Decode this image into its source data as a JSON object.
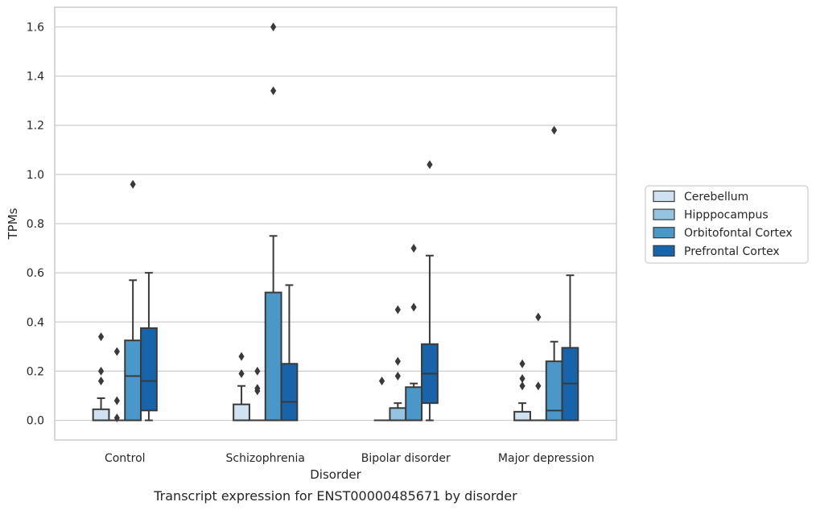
{
  "caption": "Transcript expression for ENST00000485671 by disorder",
  "chart_data": {
    "type": "box",
    "xlabel": "Disorder",
    "ylabel": "TPMs",
    "ylim": [
      -0.08,
      1.68
    ],
    "yticks": [
      "0.0",
      "0.2",
      "0.4",
      "0.6",
      "0.8",
      "1.0",
      "1.2",
      "1.4",
      "1.6"
    ],
    "ytick_values": [
      0,
      0.2,
      0.4,
      0.6,
      0.8,
      1.0,
      1.2,
      1.4,
      1.6
    ],
    "grid": true,
    "legend_position": "right",
    "categories": [
      "Control",
      "Schizophrenia",
      "Bipolar disorder",
      "Major depression"
    ],
    "series": [
      {
        "name": "Cerebellum",
        "color": "#d0e1f2",
        "boxes": [
          {
            "q1": 0.0,
            "median": 0.0,
            "q3": 0.045,
            "whisker_low": 0.0,
            "whisker_high": 0.09,
            "outliers": [
              0.34,
              0.2,
              0.16
            ]
          },
          {
            "q1": 0.0,
            "median": 0.0,
            "q3": 0.065,
            "whisker_low": 0.0,
            "whisker_high": 0.14,
            "outliers": [
              0.26,
              0.19
            ]
          },
          {
            "q1": 0.0,
            "median": 0.0,
            "q3": 0.0,
            "whisker_low": 0.0,
            "whisker_high": 0.0,
            "outliers": [
              0.16
            ]
          },
          {
            "q1": 0.0,
            "median": 0.0,
            "q3": 0.035,
            "whisker_low": 0.0,
            "whisker_high": 0.07,
            "outliers": [
              0.23,
              0.17,
              0.14
            ]
          }
        ]
      },
      {
        "name": "Hipppocampus",
        "color": "#94c4df",
        "boxes": [
          {
            "q1": 0.0,
            "median": 0.0,
            "q3": 0.0,
            "whisker_low": 0.0,
            "whisker_high": 0.0,
            "outliers": [
              0.28,
              0.08,
              0.01
            ]
          },
          {
            "q1": 0.0,
            "median": 0.0,
            "q3": 0.0,
            "whisker_low": 0.0,
            "whisker_high": 0.0,
            "outliers": [
              0.2,
              0.13,
              0.12
            ]
          },
          {
            "q1": 0.0,
            "median": 0.0,
            "q3": 0.05,
            "whisker_low": 0.0,
            "whisker_high": 0.07,
            "outliers": [
              0.45,
              0.24,
              0.18
            ]
          },
          {
            "q1": 0.0,
            "median": 0.0,
            "q3": 0.0,
            "whisker_low": 0.0,
            "whisker_high": 0.0,
            "outliers": [
              0.42,
              0.14
            ]
          }
        ]
      },
      {
        "name": "Orbitofontal Cortex",
        "color": "#4a98c9",
        "boxes": [
          {
            "q1": 0.0,
            "median": 0.18,
            "q3": 0.325,
            "whisker_low": 0.0,
            "whisker_high": 0.57,
            "outliers": [
              0.96
            ]
          },
          {
            "q1": 0.0,
            "median": 0.0,
            "q3": 0.52,
            "whisker_low": 0.0,
            "whisker_high": 0.75,
            "outliers": [
              1.6,
              1.34
            ]
          },
          {
            "q1": 0.0,
            "median": 0.0,
            "q3": 0.135,
            "whisker_low": 0.0,
            "whisker_high": 0.15,
            "outliers": [
              0.7,
              0.46
            ]
          },
          {
            "q1": 0.0,
            "median": 0.04,
            "q3": 0.24,
            "whisker_low": 0.0,
            "whisker_high": 0.32,
            "outliers": [
              1.18
            ]
          }
        ]
      },
      {
        "name": "Prefrontal Cortex",
        "color": "#1764ab",
        "boxes": [
          {
            "q1": 0.04,
            "median": 0.16,
            "q3": 0.375,
            "whisker_low": 0.0,
            "whisker_high": 0.6,
            "outliers": []
          },
          {
            "q1": 0.0,
            "median": 0.075,
            "q3": 0.23,
            "whisker_low": 0.0,
            "whisker_high": 0.55,
            "outliers": []
          },
          {
            "q1": 0.07,
            "median": 0.19,
            "q3": 0.31,
            "whisker_low": 0.0,
            "whisker_high": 0.67,
            "outliers": [
              1.04
            ]
          },
          {
            "q1": 0.0,
            "median": 0.15,
            "q3": 0.295,
            "whisker_low": 0.0,
            "whisker_high": 0.59,
            "outliers": []
          }
        ]
      }
    ]
  }
}
